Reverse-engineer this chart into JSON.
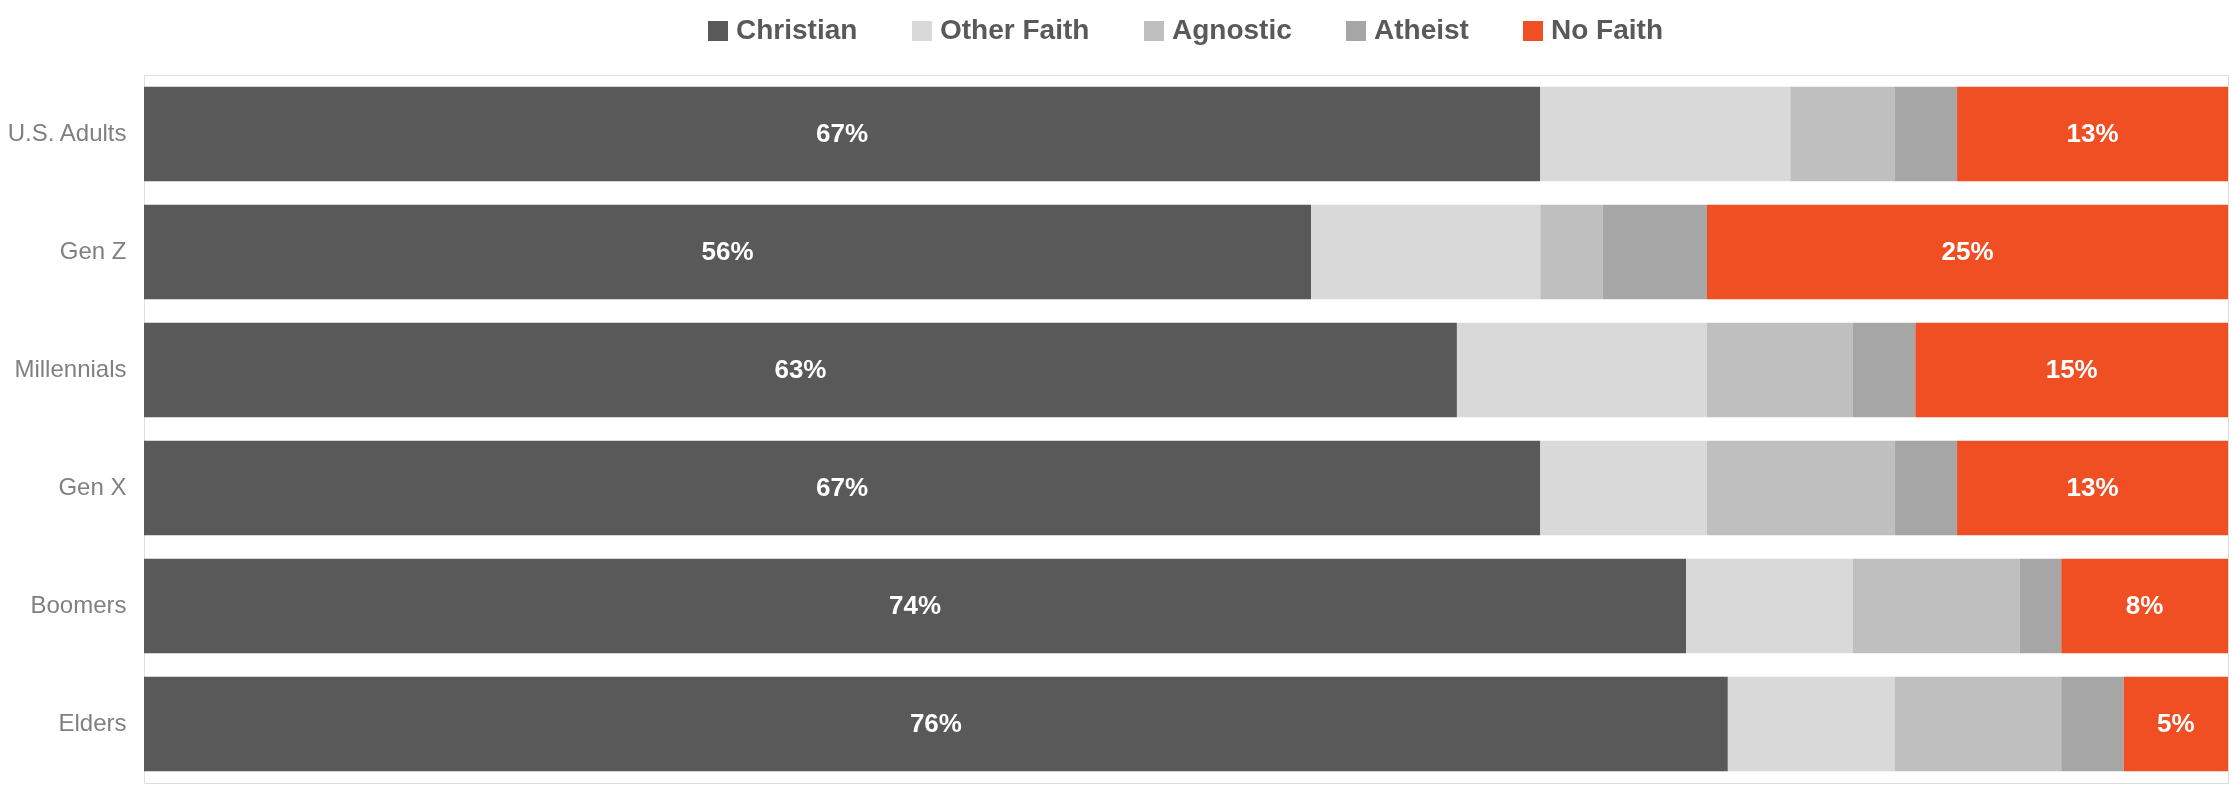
{
  "chart_data": {
    "type": "bar",
    "orientation": "horizontal",
    "stacked": true,
    "categories": [
      "U.S. Adults",
      "Gen Z",
      "Millennials",
      "Gen X",
      "Boomers",
      "Elders"
    ],
    "xlim": [
      0,
      100
    ],
    "tick_labels": "y",
    "legend": "top",
    "grid": false,
    "series": [
      {
        "name": "Christian",
        "color": "#595959",
        "values": [
          67,
          56,
          63,
          67,
          74,
          76
        ],
        "value_labels": [
          "67%",
          "56%",
          "63%",
          "67%",
          "74%",
          "76%"
        ]
      },
      {
        "name": "Other Faith",
        "color": "#d9d9d9",
        "values": [
          12,
          11,
          12,
          8,
          8,
          8
        ]
      },
      {
        "name": "Agnostic",
        "color": "#bfbfbf",
        "values": [
          5,
          3,
          7,
          9,
          8,
          8
        ]
      },
      {
        "name": "Atheist",
        "color": "#a6a6a6",
        "values": [
          3,
          5,
          3,
          3,
          2,
          3
        ]
      },
      {
        "name": "No Faith",
        "color": "#f04e23",
        "values": [
          13,
          25,
          15,
          13,
          8,
          5
        ],
        "value_labels": [
          "13%",
          "25%",
          "15%",
          "13%",
          "8%",
          "5%"
        ]
      }
    ]
  }
}
